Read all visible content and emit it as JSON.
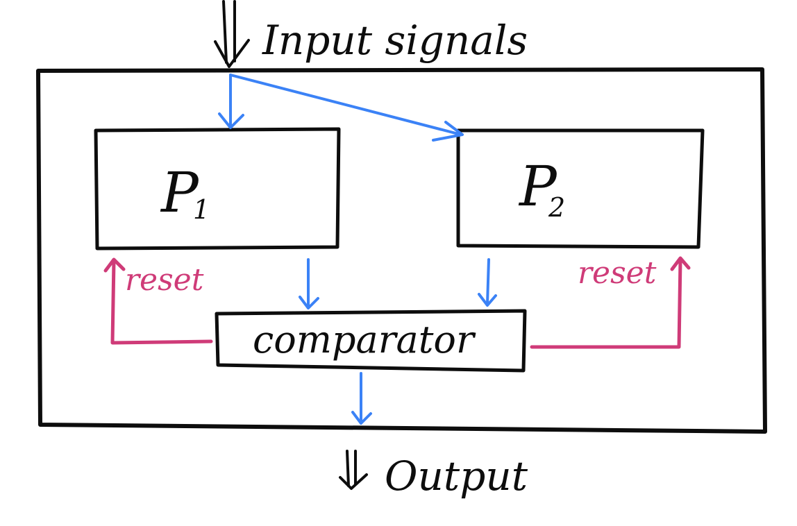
{
  "colors": {
    "ink": "#0d0d0d",
    "signal_arrow": "#3b82f6",
    "reset_line": "#cf3b78",
    "background": "#ffffff"
  },
  "labels": {
    "input": "Input signals",
    "output": "Output",
    "p1_main": "P",
    "p1_sub": "1",
    "p2_main": "P",
    "p2_sub": "2",
    "comparator": "comparator",
    "reset_left": "reset",
    "reset_right": "reset"
  },
  "icons": {
    "input_arrow": "double-down-arrow-icon",
    "output_arrow": "double-down-arrow-icon"
  }
}
